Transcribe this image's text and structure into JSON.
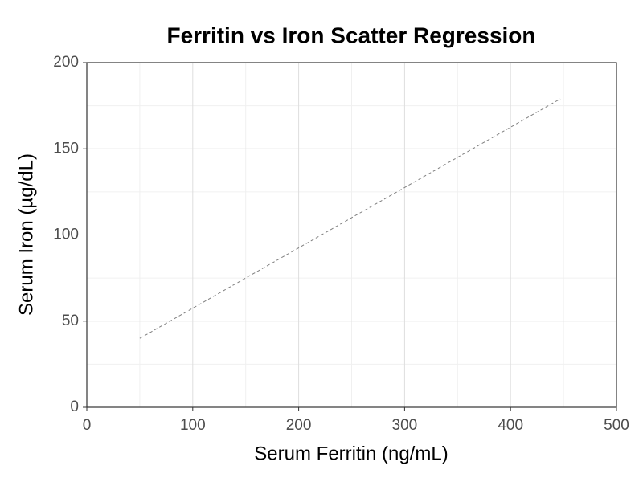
{
  "chart_data": {
    "type": "line",
    "title": "Ferritin vs Iron Scatter Regression",
    "x_label": "Serum Ferritin (ng/mL)",
    "y_label": "Serum Iron (µg/dL)",
    "x": [
      50,
      447
    ],
    "values": [
      40,
      179
    ],
    "color": "#808080",
    "line_style": "dashed",
    "xlim": [
      0,
      500
    ],
    "xticks": [
      0,
      100,
      200,
      300,
      400,
      500
    ],
    "ylim": [
      0,
      200
    ],
    "yticks": [
      0,
      50,
      100,
      150,
      200
    ],
    "grid": true
  }
}
